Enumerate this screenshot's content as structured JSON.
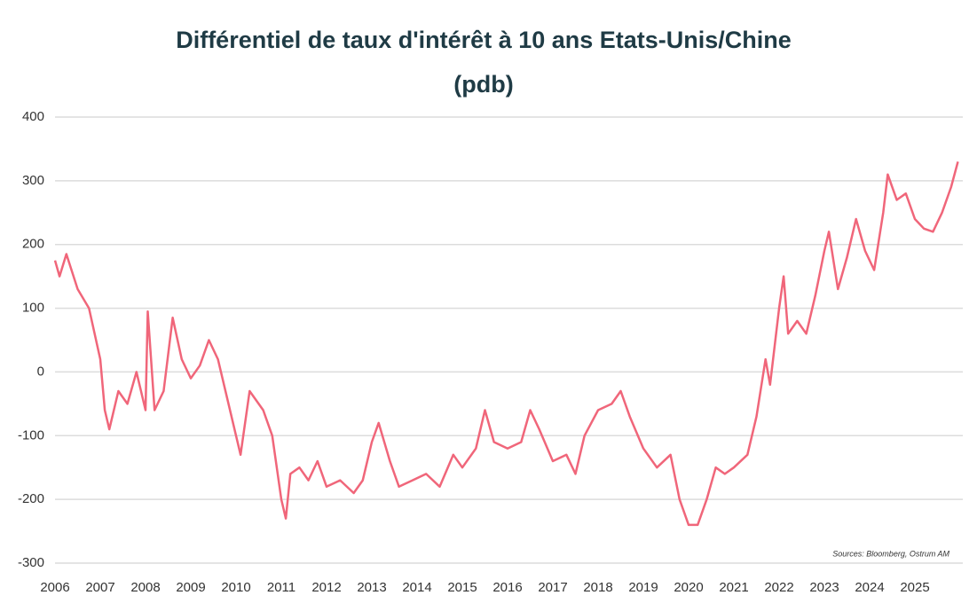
{
  "chart_data": {
    "type": "line",
    "title": "Différentiel de taux d'intérêt à 10 ans Etats-Unis/Chine",
    "subtitle": "(pdb)",
    "annotation": "Sources: Bloomberg, Ostrum AM",
    "xlim": [
      2006,
      2026
    ],
    "xticks": [
      2006,
      2007,
      2008,
      2009,
      2010,
      2011,
      2012,
      2013,
      2014,
      2015,
      2016,
      2017,
      2018,
      2019,
      2020,
      2021,
      2022,
      2023,
      2024,
      2025
    ],
    "ylim": [
      -300,
      400
    ],
    "yticks": [
      -300,
      -200,
      -100,
      0,
      100,
      200,
      300,
      400
    ],
    "grid": true,
    "x": [
      2006.0,
      2006.1,
      2006.25,
      2006.5,
      2006.75,
      2007.0,
      2007.1,
      2007.2,
      2007.4,
      2007.6,
      2007.8,
      2008.0,
      2008.05,
      2008.2,
      2008.4,
      2008.6,
      2008.8,
      2009.0,
      2009.2,
      2009.4,
      2009.6,
      2009.8,
      2010.0,
      2010.1,
      2010.3,
      2010.6,
      2010.8,
      2011.0,
      2011.1,
      2011.2,
      2011.4,
      2011.6,
      2011.8,
      2012.0,
      2012.3,
      2012.6,
      2012.8,
      2013.0,
      2013.15,
      2013.4,
      2013.6,
      2013.9,
      2014.2,
      2014.5,
      2014.8,
      2015.0,
      2015.3,
      2015.5,
      2015.7,
      2016.0,
      2016.3,
      2016.5,
      2016.7,
      2017.0,
      2017.3,
      2017.5,
      2017.7,
      2018.0,
      2018.3,
      2018.5,
      2018.7,
      2019.0,
      2019.3,
      2019.6,
      2019.8,
      2020.0,
      2020.2,
      2020.4,
      2020.6,
      2020.8,
      2021.0,
      2021.3,
      2021.5,
      2021.7,
      2021.8,
      2022.0,
      2022.1,
      2022.2,
      2022.4,
      2022.6,
      2022.8,
      2023.0,
      2023.1,
      2023.3,
      2023.5,
      2023.7,
      2023.9,
      2024.1,
      2024.3,
      2024.4,
      2024.6,
      2024.8,
      2025.0,
      2025.2,
      2025.4,
      2025.6,
      2025.8,
      2025.95
    ],
    "series": [
      {
        "name": "Différentiel",
        "color": "#f0667a",
        "values": [
          175,
          150,
          185,
          130,
          100,
          20,
          -60,
          -90,
          -30,
          -50,
          0,
          -60,
          95,
          -60,
          -30,
          85,
          20,
          -10,
          10,
          50,
          20,
          -40,
          -100,
          -130,
          -30,
          -60,
          -100,
          -200,
          -230,
          -160,
          -150,
          -170,
          -140,
          -180,
          -170,
          -190,
          -170,
          -110,
          -80,
          -140,
          -180,
          -170,
          -160,
          -180,
          -130,
          -150,
          -120,
          -60,
          -110,
          -120,
          -110,
          -60,
          -90,
          -140,
          -130,
          -160,
          -100,
          -60,
          -50,
          -30,
          -70,
          -120,
          -150,
          -130,
          -200,
          -240,
          -240,
          -200,
          -150,
          -160,
          -150,
          -130,
          -70,
          20,
          -20,
          100,
          150,
          60,
          80,
          60,
          120,
          190,
          220,
          130,
          180,
          240,
          190,
          160,
          250,
          310,
          270,
          280,
          240,
          225,
          220,
          250,
          290,
          330
        ]
      }
    ]
  }
}
